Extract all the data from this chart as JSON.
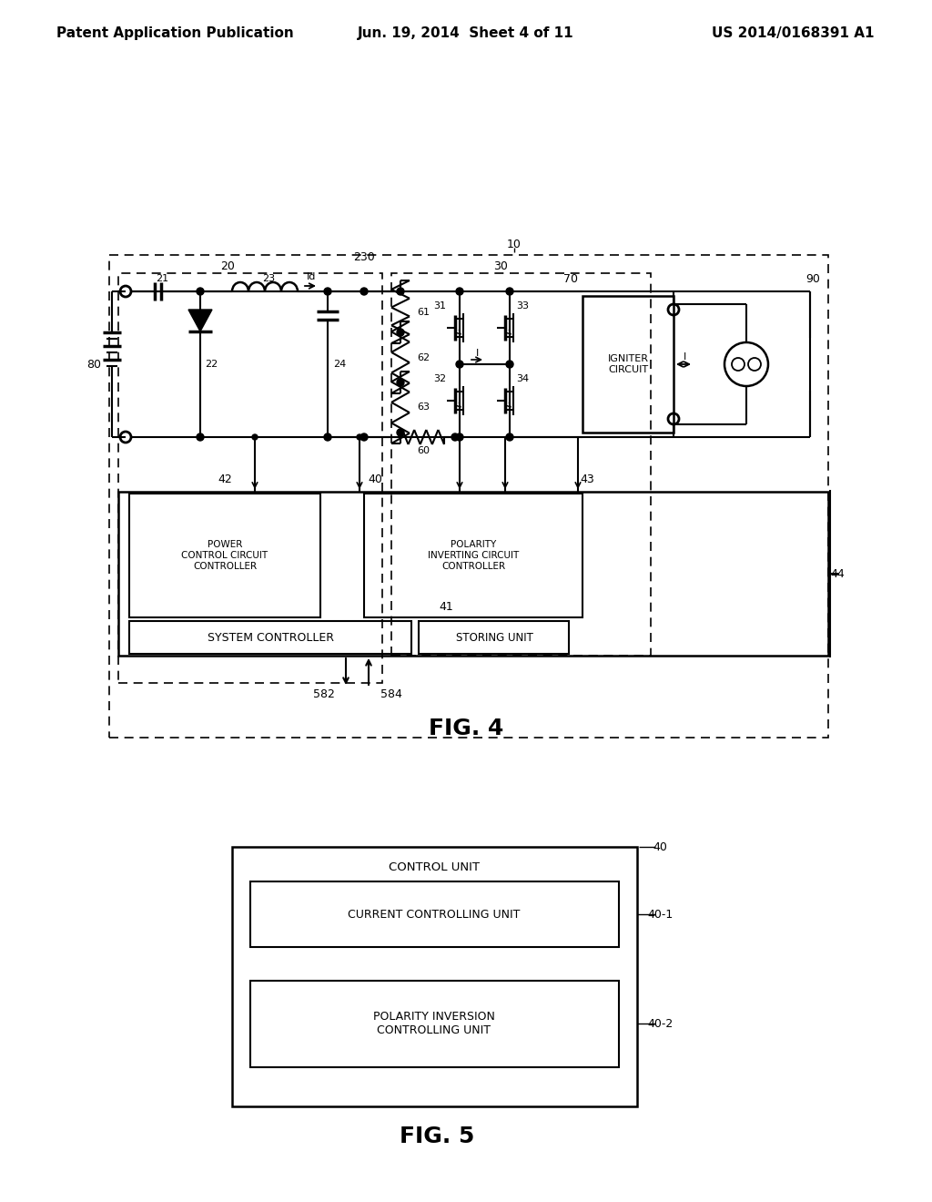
{
  "header_left": "Patent Application Publication",
  "header_center": "Jun. 19, 2014  Sheet 4 of 11",
  "header_right": "US 2014/0168391 A1",
  "fig4_label": "FIG. 4",
  "fig5_label": "FIG. 5",
  "bg": "#ffffff"
}
